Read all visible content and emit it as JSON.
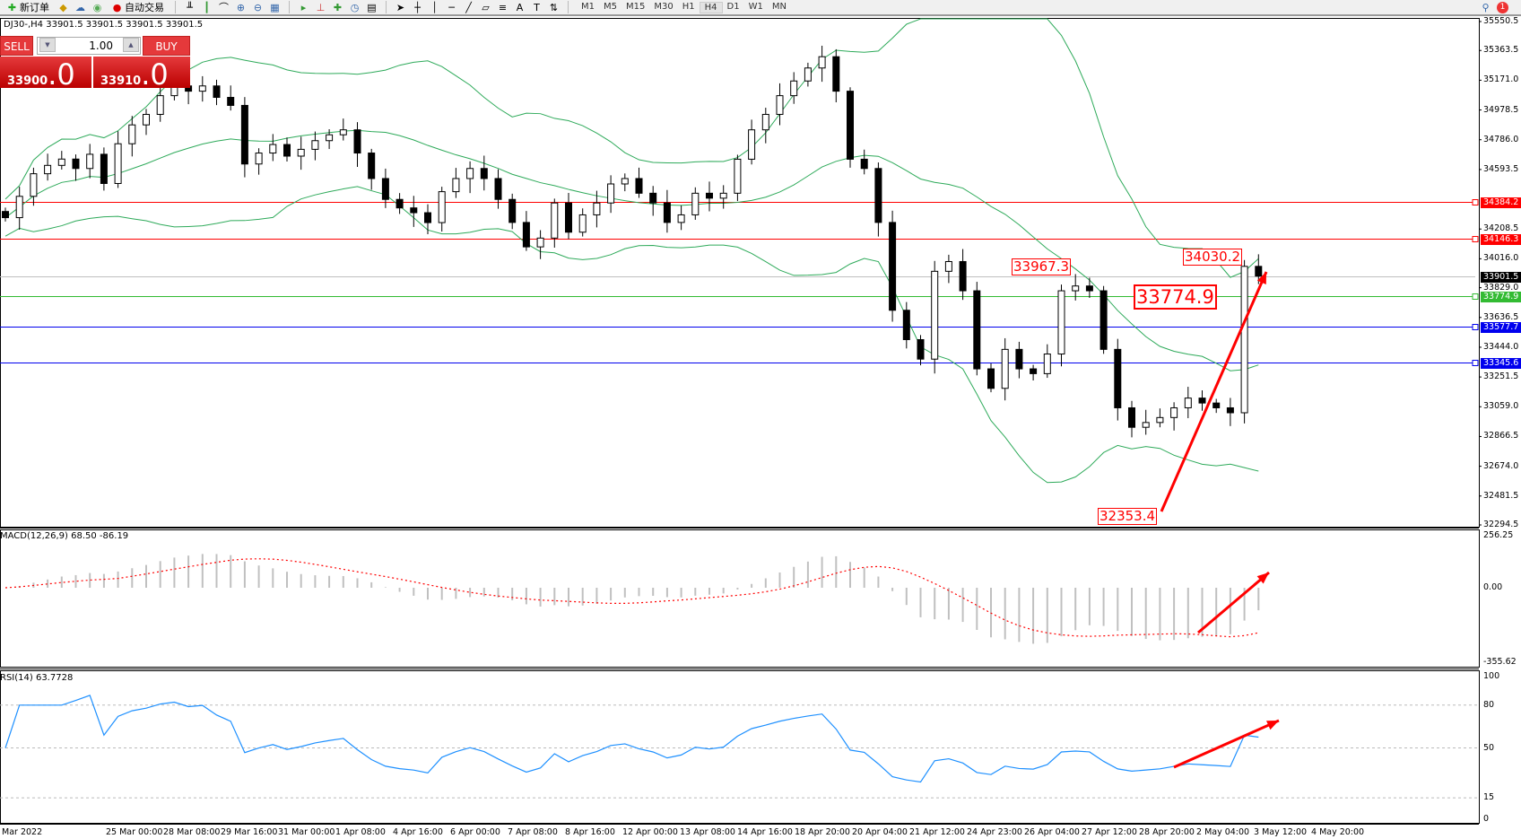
{
  "toolbar": {
    "new_order": "新订单",
    "auto_trading": "自动交易",
    "timeframes": [
      "M1",
      "M5",
      "M15",
      "M30",
      "H1",
      "H4",
      "D1",
      "W1",
      "MN"
    ],
    "active_timeframe": "H4",
    "notification_count": "1"
  },
  "chart": {
    "title": "DJ30-,H4  33901.5 33901.5 33901.5 33901.5"
  },
  "one_click": {
    "sell": "SELL",
    "buy": "BUY",
    "lot": "1.00",
    "bid_main": "33900",
    "bid_big": ".0",
    "ask_main": "33910",
    "ask_big": ".0"
  },
  "price_axis": [
    "35550.5",
    "35363.5",
    "35171.0",
    "34978.5",
    "34786.0",
    "34593.5",
    "34208.5",
    "34016.0",
    "33829.0",
    "33636.5",
    "33444.0",
    "33251.5",
    "33059.0",
    "32866.5",
    "32674.0",
    "32481.5",
    "32294.5"
  ],
  "levels": [
    {
      "price": "34384.2",
      "color": "#ff0000"
    },
    {
      "price": "34146.3",
      "color": "#ff0000"
    },
    {
      "price": "33901.5",
      "color": "#000000",
      "line": "#c0c0c0"
    },
    {
      "price": "33774.9",
      "color": "#33bb33"
    },
    {
      "price": "33577.7",
      "color": "#0000ee"
    },
    {
      "price": "33345.6",
      "color": "#0000ee"
    }
  ],
  "annotations": [
    "33967.3",
    "33774.9",
    "34030.2",
    "32353.4"
  ],
  "candles_close": [
    34282,
    34420,
    34566,
    34620,
    34661,
    34600,
    34692,
    34503,
    34760,
    34882,
    34950,
    35071,
    35134,
    35100,
    35134,
    35060,
    35008,
    34629,
    34700,
    34755,
    34680,
    34724,
    34780,
    34818,
    34850,
    34700,
    34535,
    34400,
    34345,
    34314,
    34250,
    34450,
    34535,
    34600,
    34535,
    34400,
    34251,
    34093,
    34150,
    34377,
    34188,
    34300,
    34377,
    34500,
    34535,
    34440,
    34377,
    34251,
    34300,
    34440,
    34408,
    34440,
    34660,
    34850,
    34950,
    35071,
    35166,
    35250,
    35323,
    35100,
    34660,
    34600,
    34251,
    33683,
    33493,
    33367,
    33935,
    33998,
    33809,
    33304,
    33178,
    33430,
    33304,
    33273,
    33400,
    33809,
    33840,
    33809,
    33430,
    33052,
    32926,
    32957,
    32989,
    33052,
    33115,
    33083,
    33052,
    33020,
    33967,
    33904
  ],
  "macd": {
    "label": "MACD(12,26,9) 68.50 -86.19",
    "axis": [
      "256.25",
      "0.00",
      "-355.62"
    ]
  },
  "rsi": {
    "label": "RSI(14) 63.7728",
    "axis": [
      "100",
      "80",
      "50",
      "15",
      "0"
    ]
  },
  "time_axis": [
    "Mar 2022",
    "25 Mar 00:00",
    "28 Mar 08:00",
    "29 Mar 16:00",
    "31 Mar 00:00",
    "1 Apr 08:00",
    "4 Apr 16:00",
    "6 Apr 00:00",
    "7 Apr 08:00",
    "8 Apr 16:00",
    "12 Apr 00:00",
    "13 Apr 08:00",
    "14 Apr 16:00",
    "18 Apr 20:00",
    "20 Apr 04:00",
    "21 Apr 12:00",
    "24 Apr 23:00",
    "26 Apr 04:00",
    "27 Apr 12:00",
    "28 Apr 20:00",
    "2 May 04:00",
    "3 May 12:00",
    "4 May 20:00"
  ],
  "colors": {
    "bands": "#2eaa5a",
    "macd_hist": "#c0c0c0",
    "macd_signal": "#ff0000",
    "rsi": "#1e90ff",
    "arrow": "#ff0000"
  }
}
